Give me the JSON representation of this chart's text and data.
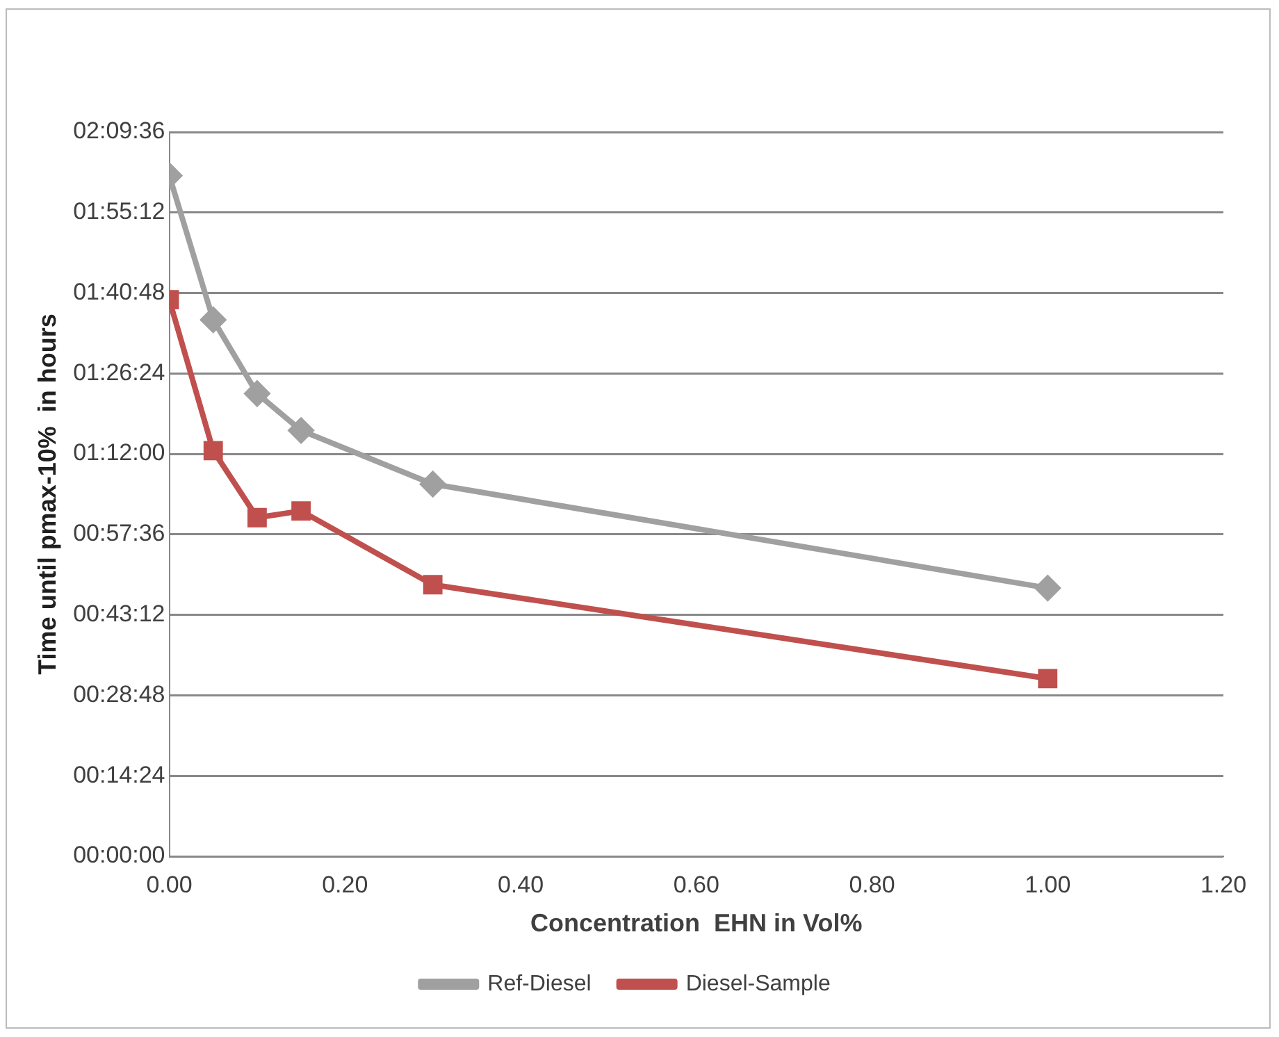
{
  "chart_data": {
    "type": "line",
    "xlabel": "Concentration  EHN in Vol%",
    "ylabel": "Time until pmax-10%  in hours",
    "x": [
      0,
      0.05,
      0.1,
      0.15,
      0.3,
      1.0
    ],
    "series": [
      {
        "name": "Ref-Diesel",
        "color": "#a0a0a0",
        "marker": "diamond",
        "values": [
          2.03,
          1.6,
          1.38,
          1.27,
          1.11,
          0.8
        ]
      },
      {
        "name": "Diesel-Sample",
        "color": "#c0504d",
        "marker": "square",
        "values": [
          1.66,
          1.21,
          1.01,
          1.03,
          0.81,
          0.53
        ]
      }
    ],
    "xlim": [
      0,
      1.2
    ],
    "xticks": [
      {
        "value": 0,
        "label": "0.00"
      },
      {
        "value": 0.2,
        "label": "0.20"
      },
      {
        "value": 0.4,
        "label": "0.40"
      },
      {
        "value": 0.6,
        "label": "0.60"
      },
      {
        "value": 0.8,
        "label": "0.80"
      },
      {
        "value": 1.0,
        "label": "1.00"
      },
      {
        "value": 1.2,
        "label": "1.20"
      }
    ],
    "ylim": [
      0,
      2.16
    ],
    "yticks": [
      {
        "value": 0,
        "label": "00:00:00"
      },
      {
        "value": 0.24,
        "label": "00:14:24"
      },
      {
        "value": 0.48,
        "label": "00:28:48"
      },
      {
        "value": 0.72,
        "label": "00:43:12"
      },
      {
        "value": 0.96,
        "label": "00:57:36"
      },
      {
        "value": 1.2,
        "label": "01:12:00"
      },
      {
        "value": 1.44,
        "label": "01:26:24"
      },
      {
        "value": 1.68,
        "label": "01:40:48"
      },
      {
        "value": 1.92,
        "label": "01:55:12"
      },
      {
        "value": 2.16,
        "label": "02:09:36"
      }
    ],
    "grid": "y",
    "legend": "bottom"
  }
}
